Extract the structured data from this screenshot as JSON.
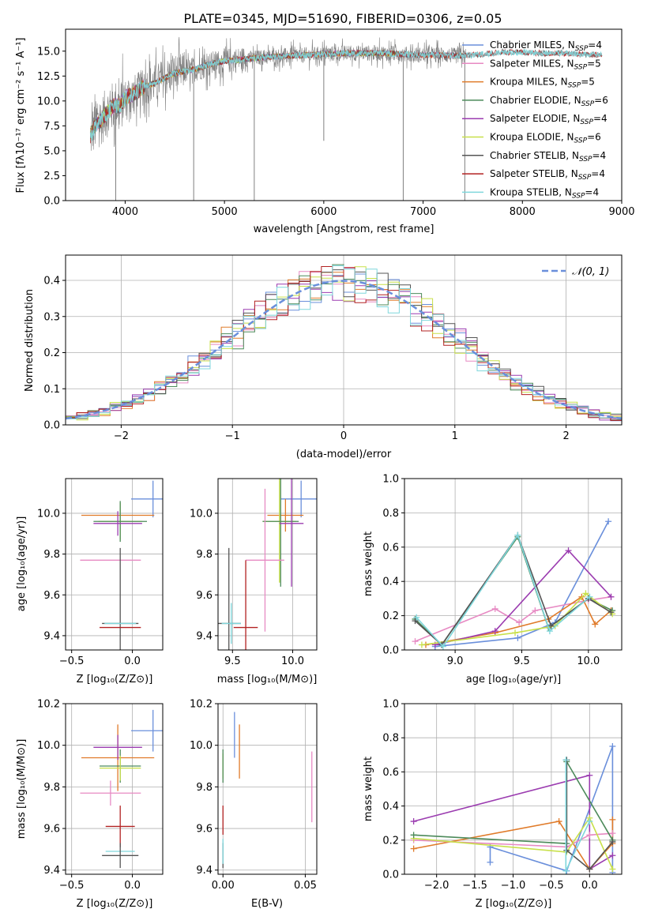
{
  "chart_data": [
    {
      "id": "spectrum",
      "type": "line",
      "title": "PLATE=0345, MJD=51690, FIBERID=0306, z=0.05",
      "xlabel": "wavelength [Angstrom, rest frame]",
      "ylabel": "Flux [fλ10⁻¹⁷ erg cm⁻² s⁻¹ A⁻¹]",
      "xlim": [
        3400,
        9000
      ],
      "ylim": [
        0,
        17.2
      ],
      "xticks": [
        "4000",
        "5000",
        "6000",
        "7000",
        "8000",
        "9000"
      ],
      "yticks": [
        "0.0",
        "2.5",
        "5.0",
        "7.5",
        "10.0",
        "12.5",
        "15.0"
      ],
      "grid": false,
      "legend_position": "right",
      "continuum": {
        "x": [
          3650,
          3700,
          3750,
          3800,
          3850,
          3900,
          3950,
          4000,
          4100,
          4200,
          4300,
          4400,
          4500,
          4600,
          4700,
          4800,
          4900,
          5000,
          5200,
          5400,
          5600,
          5800,
          6000,
          6200,
          6400,
          6600,
          6800,
          7000,
          7200,
          7400,
          7600,
          7800,
          8000,
          8200,
          8400,
          8600,
          8800
        ],
        "y": [
          6.5,
          7.5,
          8.0,
          8.6,
          9.2,
          9.6,
          9.5,
          10.3,
          10.8,
          11.5,
          11.8,
          12.3,
          12.8,
          13.0,
          13.2,
          13.5,
          13.8,
          14.0,
          14.2,
          14.4,
          14.5,
          14.6,
          14.7,
          14.8,
          14.8,
          14.8,
          14.7,
          14.6,
          14.6,
          14.5,
          14.7,
          14.9,
          14.9,
          14.8,
          14.8,
          14.7,
          14.6
        ]
      },
      "dips": [
        {
          "x": 3905,
          "y": 0
        },
        {
          "x": 4690,
          "y": 0
        },
        {
          "x": 5300,
          "y": 0
        },
        {
          "x": 6000,
          "y": 6.0
        },
        {
          "x": 6800,
          "y": 0
        },
        {
          "x": 7420,
          "y": 0
        }
      ],
      "data_color": "#808080",
      "series": [
        {
          "name": "Chabrier MILES, N$_{SSP}$=4",
          "label_main": "Chabrier MILES, N",
          "label_sub": "SSP",
          "label_end": "=4",
          "color": "#6a8fdb",
          "x_end": 7400
        },
        {
          "name": "Salpeter MILES, N$_{SSP}$=5",
          "label_main": "Salpeter MILES, N",
          "label_sub": "SSP",
          "label_end": "=5",
          "color": "#e78ac3",
          "x_end": 7400
        },
        {
          "name": "Kroupa MILES, N$_{SSP}$=5",
          "label_main": "Kroupa MILES, N",
          "label_sub": "SSP",
          "label_end": "=5",
          "color": "#e07b2a",
          "x_end": 7400
        },
        {
          "name": "Chabrier ELODIE, N$_{SSP}$=6",
          "label_main": "Chabrier ELODIE, N",
          "label_sub": "SSP",
          "label_end": "=6",
          "color": "#4c8a5a",
          "x_end": 6800
        },
        {
          "name": "Salpeter ELODIE, N$_{SSP}$=4",
          "label_main": "Salpeter ELODIE, N",
          "label_sub": "SSP",
          "label_end": "=4",
          "color": "#9b3cb0",
          "x_end": 6800
        },
        {
          "name": "Kroupa ELODIE, N$_{SSP}$=6",
          "label_main": "Kroupa ELODIE, N",
          "label_sub": "SSP",
          "label_end": "=6",
          "color": "#c8e04a",
          "x_end": 6800
        },
        {
          "name": "Chabrier STELIB, N$_{SSP}$=4",
          "label_main": "Chabrier STELIB, N",
          "label_sub": "SSP",
          "label_end": "=4",
          "color": "#555555",
          "x_end": 8800
        },
        {
          "name": "Salpeter STELIB, N$_{SSP}$=4",
          "label_main": "Salpeter STELIB, N",
          "label_sub": "SSP",
          "label_end": "=4",
          "color": "#b22222",
          "x_end": 8800
        },
        {
          "name": "Kroupa STELIB, N$_{SSP}$=4",
          "label_main": "Kroupa STELIB, N",
          "label_sub": "SSP",
          "label_end": "=4",
          "color": "#7fd7dc",
          "x_end": 8800
        }
      ]
    },
    {
      "id": "residuals",
      "type": "line",
      "xlabel": "(data-model)/error",
      "ylabel": "Normed distribution",
      "xlim": [
        -2.5,
        2.5
      ],
      "ylim": [
        0,
        0.47
      ],
      "xticks": [
        -2,
        -1,
        0,
        1,
        2
      ],
      "yticks": [
        0.0,
        0.1,
        0.2,
        0.3,
        0.4
      ],
      "xtick_labels": [
        "−2",
        "−1",
        "0",
        "1",
        "2"
      ],
      "ytick_labels": [
        "0.0",
        "0.1",
        "0.2",
        "0.3",
        "0.4"
      ],
      "grid": true,
      "legend_position": "top-right",
      "reference_curve": {
        "label": "𝒩(0, 1)",
        "style": "dashed",
        "color": "#6a8fdb",
        "mean": 0,
        "sigma": 1
      },
      "bin_width": 0.1,
      "histogram_colors": [
        "#6a8fdb",
        "#e78ac3",
        "#e07b2a",
        "#4c8a5a",
        "#9b3cb0",
        "#c8e04a",
        "#555555",
        "#b22222",
        "#7fd7dc"
      ]
    },
    {
      "id": "age-vs-Z",
      "type": "scatter",
      "xlabel": "Z [log₁₀(Z/Z⊙)]",
      "ylabel": "age  [log₁₀(age/yr)]",
      "xlim": [
        -0.55,
        0.25
      ],
      "ylim": [
        9.33,
        10.17
      ],
      "xticks": [
        -0.5,
        0.0
      ],
      "yticks": [
        9.4,
        9.6,
        9.8,
        10.0
      ],
      "xtick_labels": [
        "−0.5",
        "0.0"
      ],
      "ytick_labels": [
        "9.4",
        "9.6",
        "9.8",
        "10.0"
      ],
      "grid": true,
      "points": [
        {
          "color": "#6a8fdb",
          "x": 0.17,
          "y": 10.07,
          "xerr": 0.18,
          "yerr": 0.09
        },
        {
          "color": "#e07b2a",
          "x": -0.12,
          "y": 9.99,
          "xerr": 0.3,
          "yerr": 0.0
        },
        {
          "color": "#c8e04a",
          "x": -0.1,
          "y": 9.96,
          "xerr": 0.18,
          "yerr": 0.09
        },
        {
          "color": "#4c8a5a",
          "x": -0.1,
          "y": 9.96,
          "xerr": 0.22,
          "yerr": 0.1
        },
        {
          "color": "#9b3cb0",
          "x": -0.12,
          "y": 9.95,
          "xerr": 0.2,
          "yerr": 0.06
        },
        {
          "color": "#e78ac3",
          "x": -0.18,
          "y": 9.77,
          "xerr": 0.25,
          "yerr": 0.0
        },
        {
          "color": "#555555",
          "x": -0.1,
          "y": 9.46,
          "xerr": 0.15,
          "yerr": 0.37
        },
        {
          "color": "#7fd7dc",
          "x": -0.1,
          "y": 9.46,
          "xerr": 0.13,
          "yerr": 0.0
        },
        {
          "color": "#b22222",
          "x": -0.1,
          "y": 9.44,
          "xerr": 0.17,
          "yerr": 0.0
        }
      ]
    },
    {
      "id": "age-vs-mass",
      "type": "scatter",
      "xlabel": "mass [log₁₀(M/M⊙)]",
      "xlim": [
        9.38,
        10.2
      ],
      "ylim": [
        9.33,
        10.17
      ],
      "xticks": [
        9.5,
        10.0
      ],
      "yticks": [
        9.4,
        9.6,
        9.8,
        10.0
      ],
      "xtick_labels": [
        "9.5",
        "10.0"
      ],
      "ytick_labels": [
        "9.4",
        "9.6",
        "9.8",
        "10.0"
      ],
      "grid": true,
      "points": [
        {
          "color": "#6a8fdb",
          "x": 10.07,
          "y": 10.07,
          "xerr": 0.17,
          "yerr": 0.09
        },
        {
          "color": "#e07b2a",
          "x": 9.94,
          "y": 9.99,
          "xerr": 0.15,
          "yerr": 0.08
        },
        {
          "color": "#c8e04a",
          "x": 9.89,
          "y": 9.96,
          "xerr": 0.14,
          "yerr": 0.3
        },
        {
          "color": "#4c8a5a",
          "x": 9.9,
          "y": 9.96,
          "xerr": 0.15,
          "yerr": 0.32
        },
        {
          "color": "#9b3cb0",
          "x": 9.99,
          "y": 9.95,
          "xerr": 0.1,
          "yerr": 0.31
        },
        {
          "color": "#e78ac3",
          "x": 9.77,
          "y": 9.77,
          "xerr": 0.16,
          "yerr": 0.35
        },
        {
          "color": "#555555",
          "x": 9.47,
          "y": 9.46,
          "xerr": 0.1,
          "yerr": 0.37
        },
        {
          "color": "#7fd7dc",
          "x": 9.49,
          "y": 9.46,
          "xerr": 0.08,
          "yerr": 0.1
        },
        {
          "color": "#b22222",
          "x": 9.61,
          "y": 9.44,
          "xerr": 0.1,
          "yerr": 0.33
        }
      ]
    },
    {
      "id": "weight-vs-age",
      "type": "line",
      "xlabel": "age  [log₁₀(age/yr)]",
      "ylabel": "mass weight",
      "xlim": [
        8.62,
        10.25
      ],
      "ylim": [
        0,
        1.0
      ],
      "xticks": [
        9.0,
        9.5,
        10.0
      ],
      "yticks": [
        0.0,
        0.2,
        0.4,
        0.6,
        0.8,
        1.0
      ],
      "xtick_labels": [
        "9.0",
        "9.5",
        "10.0"
      ],
      "ytick_labels": [
        "0.0",
        "0.2",
        "0.4",
        "0.6",
        "0.8",
        "1.0"
      ],
      "grid": true,
      "series": [
        {
          "color": "#6a8fdb",
          "x": [
            8.85,
            9.47,
            9.75,
            10.15
          ],
          "y": [
            0.02,
            0.07,
            0.16,
            0.75
          ]
        },
        {
          "color": "#e78ac3",
          "x": [
            8.7,
            9.3,
            9.48,
            9.6,
            10.0,
            10.17
          ],
          "y": [
            0.05,
            0.24,
            0.16,
            0.23,
            0.29,
            0.31
          ]
        },
        {
          "color": "#e07b2a",
          "x": [
            8.78,
            9.3,
            9.7,
            9.95,
            10.05,
            10.17
          ],
          "y": [
            0.03,
            0.1,
            0.18,
            0.31,
            0.15,
            0.23
          ]
        },
        {
          "color": "#4c8a5a",
          "x": [
            8.7,
            8.9,
            9.47,
            9.7,
            10.0,
            10.18
          ],
          "y": [
            0.18,
            0.03,
            0.66,
            0.13,
            0.3,
            0.23
          ]
        },
        {
          "color": "#9b3cb0",
          "x": [
            8.85,
            9.3,
            9.85,
            10.17
          ],
          "y": [
            0.03,
            0.11,
            0.58,
            0.31
          ]
        },
        {
          "color": "#c8e04a",
          "x": [
            8.75,
            9.45,
            9.75,
            9.98,
            10.18
          ],
          "y": [
            0.03,
            0.1,
            0.14,
            0.33,
            0.21
          ]
        },
        {
          "color": "#555555",
          "x": [
            8.7,
            8.9,
            9.47,
            9.72,
            10.0,
            10.17
          ],
          "y": [
            0.17,
            0.03,
            0.67,
            0.14,
            0.3,
            0.22
          ]
        },
        {
          "color": "#7fd7dc",
          "x": [
            8.71,
            8.91,
            9.47,
            9.71,
            10.01
          ],
          "y": [
            0.19,
            0.02,
            0.67,
            0.11,
            0.31
          ]
        }
      ]
    },
    {
      "id": "mass-vs-Z",
      "type": "scatter",
      "xlabel": "Z [log₁₀(Z/Z⊙)]",
      "ylabel": "mass [log₁₀(M/M⊙)]",
      "xlim": [
        -0.55,
        0.25
      ],
      "ylim": [
        9.38,
        10.2
      ],
      "xticks": [
        -0.5,
        0.0
      ],
      "yticks": [
        9.4,
        9.6,
        9.8,
        10.0,
        10.2
      ],
      "xtick_labels": [
        "−0.5",
        "0.0"
      ],
      "ytick_labels": [
        "9.4",
        "9.6",
        "9.8",
        "10.0",
        "10.2"
      ],
      "grid": true,
      "points": [
        {
          "color": "#6a8fdb",
          "x": 0.17,
          "y": 10.07,
          "xerr": 0.18,
          "yerr": 0.1
        },
        {
          "color": "#e07b2a",
          "x": -0.12,
          "y": 9.94,
          "xerr": 0.3,
          "yerr": 0.16
        },
        {
          "color": "#9b3cb0",
          "x": -0.12,
          "y": 9.99,
          "xerr": 0.2,
          "yerr": 0.06
        },
        {
          "color": "#4c8a5a",
          "x": -0.1,
          "y": 9.9,
          "xerr": 0.17,
          "yerr": 0.08
        },
        {
          "color": "#c8e04a",
          "x": -0.1,
          "y": 9.89,
          "xerr": 0.17,
          "yerr": 0.06
        },
        {
          "color": "#e78ac3",
          "x": -0.18,
          "y": 9.77,
          "xerr": 0.25,
          "yerr": 0.06
        },
        {
          "color": "#b22222",
          "x": -0.1,
          "y": 9.61,
          "xerr": 0.12,
          "yerr": 0.1
        },
        {
          "color": "#7fd7dc",
          "x": -0.1,
          "y": 9.49,
          "xerr": 0.12,
          "yerr": 0.0
        },
        {
          "color": "#555555",
          "x": -0.1,
          "y": 9.47,
          "xerr": 0.15,
          "yerr": 0.06
        }
      ]
    },
    {
      "id": "mass-vs-ebv",
      "type": "scatter",
      "xlabel": "E(B-V)",
      "xlim": [
        -0.003,
        0.057
      ],
      "ylim": [
        9.38,
        10.2
      ],
      "xticks": [
        0.0,
        0.05
      ],
      "yticks": [
        9.4,
        9.6,
        9.8,
        10.0,
        10.2
      ],
      "xtick_labels": [
        "0.00",
        "0.05"
      ],
      "ytick_labels": [
        "9.4",
        "9.6",
        "9.8",
        "10.0",
        "10.2"
      ],
      "grid": true,
      "points": [
        {
          "color": "#6a8fdb",
          "x": 0.007,
          "y": 10.05,
          "yerr": 0.11
        },
        {
          "color": "#e07b2a",
          "x": 0.01,
          "y": 9.97,
          "yerr": 0.13
        },
        {
          "color": "#e78ac3",
          "x": 0.054,
          "y": 9.8,
          "yerr": 0.17
        },
        {
          "color": "#c8e04a",
          "x": 0.0,
          "y": 9.9,
          "yerr": 0.06
        },
        {
          "color": "#4c8a5a",
          "x": 0.0,
          "y": 9.9,
          "yerr": 0.08
        },
        {
          "color": "#b22222",
          "x": 0.0,
          "y": 9.64,
          "yerr": 0.07
        },
        {
          "color": "#555555",
          "x": 0.0,
          "y": 9.47,
          "yerr": 0.06
        },
        {
          "color": "#7fd7dc",
          "x": 0.0,
          "y": 9.49,
          "yerr": 0.06
        }
      ]
    },
    {
      "id": "weight-vs-Z",
      "type": "line",
      "xlabel": "Z [log₁₀(Z/Z⊙)]",
      "ylabel": "mass weight",
      "xlim": [
        -2.42,
        0.42
      ],
      "ylim": [
        0,
        1.0
      ],
      "xticks": [
        -2.0,
        -1.5,
        -1.0,
        -0.5,
        0.0
      ],
      "yticks": [
        0.0,
        0.2,
        0.4,
        0.6,
        0.8,
        1.0
      ],
      "xtick_labels": [
        "−2.0",
        "−1.5",
        "−1.0",
        "−0.5",
        "0.0"
      ],
      "ytick_labels": [
        "0.0",
        "0.2",
        "0.4",
        "0.6",
        "0.8",
        "1.0"
      ],
      "grid": true,
      "series": [
        {
          "color": "#6a8fdb",
          "x": [
            -1.3,
            -1.3,
            -0.3,
            0.3,
            0.3
          ],
          "y": [
            0.07,
            0.16,
            0.02,
            0.75,
            0.01
          ]
        },
        {
          "color": "#9b3cb0",
          "x": [
            -2.3,
            0.0,
            0.0,
            0.3
          ],
          "y": [
            0.31,
            0.58,
            0.03,
            0.11
          ]
        },
        {
          "color": "#e07b2a",
          "x": [
            -2.3,
            -0.4,
            0.0,
            0.3,
            0.3
          ],
          "y": [
            0.15,
            0.31,
            0.03,
            0.18,
            0.32
          ]
        },
        {
          "color": "#e78ac3",
          "x": [
            -2.3,
            -0.3,
            0.0,
            0.3
          ],
          "y": [
            0.2,
            0.16,
            0.23,
            0.24
          ]
        },
        {
          "color": "#c8e04a",
          "x": [
            -2.3,
            -0.3,
            0.0,
            0.3
          ],
          "y": [
            0.21,
            0.13,
            0.33,
            0.03
          ]
        },
        {
          "color": "#4c8a5a",
          "x": [
            -2.3,
            -0.3,
            -0.3,
            0.3
          ],
          "y": [
            0.23,
            0.18,
            0.66,
            0.2
          ]
        },
        {
          "color": "#555555",
          "x": [
            -0.3,
            -0.3,
            0.0,
            0.3
          ],
          "y": [
            0.67,
            0.14,
            0.03,
            0.19
          ]
        },
        {
          "color": "#7fd7dc",
          "x": [
            -0.31,
            -0.31,
            0.0
          ],
          "y": [
            0.67,
            0.02,
            0.31
          ]
        }
      ]
    }
  ]
}
